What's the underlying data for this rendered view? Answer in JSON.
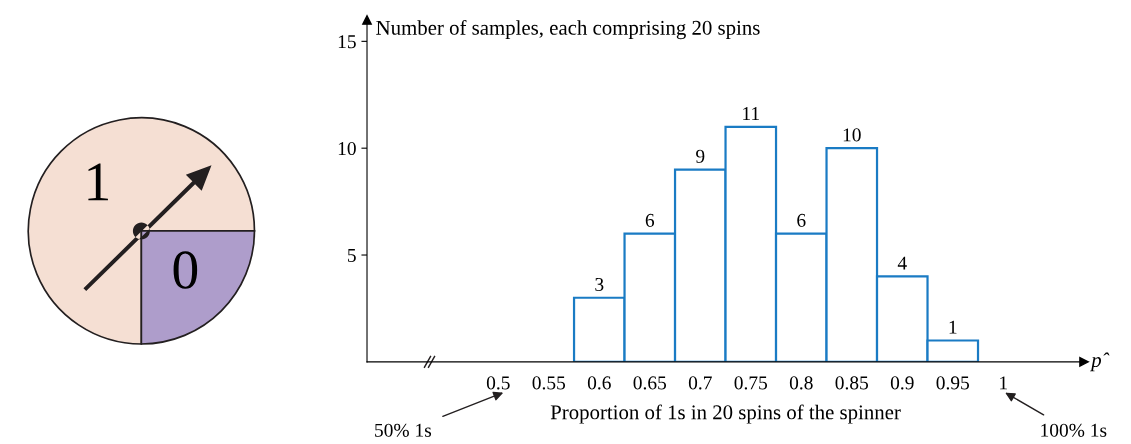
{
  "chart_data": [
    {
      "type": "pie",
      "categories": [
        "1",
        "0"
      ],
      "values": [
        75,
        25
      ],
      "colors": [
        "#f5dfd3",
        "#ae9dcb"
      ]
    },
    {
      "type": "histogram",
      "xlabel": "Proportion of 1s in 20 spins of the spinner",
      "ylabel": "Number of samples, each comprising 20 spins",
      "bins": [
        0.575,
        0.625,
        0.675,
        0.725,
        0.775,
        0.825,
        0.875,
        0.925,
        0.975
      ],
      "values": [
        3,
        6,
        9,
        11,
        6,
        10,
        4,
        1
      ],
      "color": "#1a7bc4",
      "data_labels": true,
      "xlim": [
        0.37,
        1.08
      ],
      "xticks": [
        0.5,
        0.55,
        0.6,
        0.65,
        0.7,
        0.75,
        0.8,
        0.85,
        0.9,
        0.95,
        1
      ],
      "ylim": [
        0,
        16
      ],
      "yticks": [
        5,
        10,
        15
      ],
      "grid": false,
      "annotations": [
        "p̂",
        "50% 1s",
        "100% 1s"
      ]
    }
  ]
}
